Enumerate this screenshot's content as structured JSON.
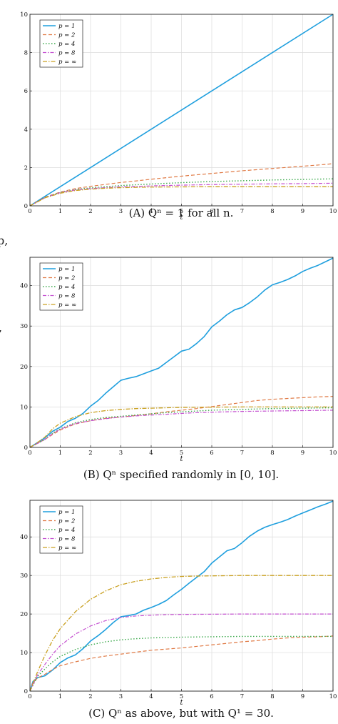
{
  "edge_text": [
    "p,",
    ","
  ],
  "legend_labels": [
    "p = 1",
    "p = 2",
    "p = 4",
    "p = 8",
    "p = ∞"
  ],
  "colors": {
    "p1": "#1f9fde",
    "p2": "#e07a45",
    "p4": "#3aa84a",
    "p8": "#c44fd0",
    "pinf": "#c9a020"
  },
  "chart_data": [
    {
      "type": "line",
      "caption": "(A) Qⁿ = 1 for all n.",
      "xlabel": "t",
      "ylabel": "",
      "xlim": [
        0,
        10
      ],
      "ylim": [
        0,
        10
      ],
      "xticks": [
        0,
        1,
        2,
        3,
        4,
        5,
        6,
        7,
        8,
        9,
        10
      ],
      "yticks": [
        0,
        2,
        4,
        6,
        8,
        10
      ],
      "grid": true,
      "legend": "top-left",
      "series": [
        {
          "name": "p = 1",
          "x": [
            0,
            10
          ],
          "y": [
            0,
            10
          ]
        },
        {
          "name": "p = 2",
          "x": [
            0,
            0.5,
            1,
            1.5,
            2,
            2.5,
            3,
            3.5,
            4,
            4.5,
            5,
            5.5,
            6,
            6.5,
            7,
            7.5,
            8,
            8.5,
            9,
            9.5,
            10
          ],
          "y": [
            0,
            0.45,
            0.72,
            0.9,
            1.02,
            1.12,
            1.22,
            1.3,
            1.39,
            1.47,
            1.55,
            1.62,
            1.69,
            1.76,
            1.83,
            1.89,
            1.95,
            2.01,
            2.07,
            2.13,
            2.2
          ]
        },
        {
          "name": "p = 4",
          "x": [
            0,
            0.5,
            1,
            1.5,
            2,
            2.5,
            3,
            4,
            5,
            6,
            7,
            8,
            9,
            10
          ],
          "y": [
            0,
            0.44,
            0.7,
            0.85,
            0.94,
            1.0,
            1.06,
            1.14,
            1.21,
            1.27,
            1.31,
            1.35,
            1.38,
            1.41
          ]
        },
        {
          "name": "p = 8",
          "x": [
            0,
            0.5,
            1,
            1.5,
            2,
            2.5,
            3,
            4,
            5,
            6,
            7,
            8,
            9,
            10
          ],
          "y": [
            0,
            0.43,
            0.69,
            0.83,
            0.9,
            0.95,
            0.99,
            1.04,
            1.08,
            1.11,
            1.13,
            1.15,
            1.16,
            1.18
          ]
        },
        {
          "name": "p = ∞",
          "x": [
            0,
            0.5,
            1,
            1.5,
            2,
            2.5,
            3,
            4,
            5,
            6,
            7,
            8,
            9,
            10
          ],
          "y": [
            0,
            0.42,
            0.66,
            0.8,
            0.87,
            0.92,
            0.95,
            0.98,
            0.99,
            1.0,
            1.0,
            1.0,
            1.0,
            1.0
          ]
        }
      ]
    },
    {
      "type": "line",
      "caption": "(B) Qⁿ specified randomly in [0, 10].",
      "xlabel": "t",
      "ylabel": "",
      "xlim": [
        0,
        10
      ],
      "ylim": [
        0,
        47
      ],
      "xticks": [
        0,
        1,
        2,
        3,
        4,
        5,
        6,
        7,
        8,
        9,
        10
      ],
      "yticks": [
        0,
        10,
        20,
        30,
        40
      ],
      "grid": true,
      "legend": "top-left",
      "series": [
        {
          "name": "p = 1",
          "x": [
            0,
            0.25,
            0.5,
            0.75,
            1,
            1.25,
            1.5,
            1.75,
            2,
            2.25,
            2.5,
            2.75,
            3,
            3.25,
            3.5,
            3.75,
            4,
            4.25,
            4.5,
            4.75,
            5,
            5.25,
            5.5,
            5.75,
            6,
            6.25,
            6.5,
            6.75,
            7,
            7.25,
            7.5,
            7.75,
            8,
            8.25,
            8.5,
            8.75,
            9,
            9.25,
            9.5,
            9.75,
            10
          ],
          "y": [
            0,
            1.2,
            2.4,
            4.0,
            5.0,
            6.4,
            7.2,
            8.4,
            10.2,
            11.6,
            13.4,
            15.0,
            16.6,
            17.1,
            17.5,
            18.2,
            18.9,
            19.6,
            21.0,
            22.4,
            23.8,
            24.3,
            25.7,
            27.4,
            29.8,
            31.2,
            32.8,
            34.0,
            34.6,
            35.8,
            37.2,
            38.9,
            40.2,
            40.8,
            41.5,
            42.4,
            43.5,
            44.3,
            45.0,
            45.9,
            46.8
          ]
        },
        {
          "name": "p = 2",
          "x": [
            0,
            0.25,
            0.5,
            0.75,
            1,
            1.5,
            2,
            2.5,
            3,
            3.5,
            4,
            4.5,
            5,
            5.5,
            6,
            6.5,
            7,
            7.5,
            8,
            8.5,
            9,
            9.5,
            10
          ],
          "y": [
            0,
            1.0,
            2.0,
            3.2,
            4.3,
            5.8,
            6.6,
            7.2,
            7.5,
            7.9,
            8.3,
            8.8,
            9.2,
            9.6,
            10.1,
            10.6,
            11.1,
            11.6,
            11.9,
            12.1,
            12.3,
            12.5,
            12.6
          ]
        },
        {
          "name": "p = 4",
          "x": [
            0,
            0.25,
            0.5,
            0.75,
            1,
            1.5,
            2,
            2.5,
            3,
            3.5,
            4,
            4.5,
            5,
            5.5,
            6,
            7,
            8,
            9,
            10
          ],
          "y": [
            0,
            1.0,
            2.0,
            3.5,
            4.6,
            6.1,
            6.9,
            7.4,
            7.7,
            8.0,
            8.3,
            8.6,
            8.8,
            9.0,
            9.2,
            9.4,
            9.6,
            9.7,
            9.8
          ]
        },
        {
          "name": "p = 8",
          "x": [
            0,
            0.25,
            0.5,
            0.75,
            1,
            1.5,
            2,
            2.5,
            3,
            3.5,
            4,
            4.5,
            5,
            5.5,
            6,
            7,
            8,
            9,
            10
          ],
          "y": [
            0,
            1.0,
            2.0,
            3.4,
            4.5,
            5.9,
            6.6,
            7.1,
            7.5,
            7.8,
            8.0,
            8.2,
            8.4,
            8.6,
            8.7,
            8.9,
            9.0,
            9.1,
            9.2
          ]
        },
        {
          "name": "p = ∞",
          "x": [
            0,
            0.25,
            0.5,
            0.75,
            1,
            1.5,
            2,
            2.5,
            3,
            3.5,
            4,
            4.5,
            5,
            6,
            7,
            8,
            9,
            10
          ],
          "y": [
            0,
            1.2,
            2.6,
            4.6,
            6.0,
            7.6,
            8.6,
            9.1,
            9.4,
            9.6,
            9.7,
            9.8,
            9.9,
            9.95,
            10.0,
            10.0,
            10.0,
            10.0
          ]
        }
      ]
    },
    {
      "type": "line",
      "caption": "(C) Qⁿ as above, but with Q¹ = 30.",
      "xlabel": "t",
      "ylabel": "",
      "xlim": [
        0,
        10
      ],
      "ylim": [
        0,
        49.5
      ],
      "xticks": [
        0,
        1,
        2,
        3,
        4,
        5,
        6,
        7,
        8,
        9,
        10
      ],
      "yticks": [
        0,
        10,
        20,
        30,
        40
      ],
      "grid": true,
      "legend": "top-left",
      "series": [
        {
          "name": "p = 1",
          "x": [
            0,
            0.1,
            0.25,
            0.5,
            0.75,
            1,
            1.25,
            1.5,
            1.75,
            2,
            2.25,
            2.5,
            2.75,
            3,
            3.25,
            3.5,
            3.75,
            4,
            4.25,
            4.5,
            4.75,
            5,
            5.25,
            5.5,
            5.75,
            6,
            6.25,
            6.5,
            6.75,
            7,
            7.25,
            7.5,
            7.75,
            8,
            8.25,
            8.5,
            8.75,
            9,
            9.25,
            9.5,
            9.75,
            10
          ],
          "y": [
            0,
            2.5,
            3.5,
            4.0,
            5.5,
            7.4,
            8.6,
            9.4,
            11.0,
            13.0,
            14.4,
            16.0,
            17.8,
            19.3,
            19.6,
            20.0,
            21.0,
            21.7,
            22.5,
            23.5,
            25.0,
            26.4,
            28.0,
            29.5,
            31.0,
            33.2,
            34.8,
            36.4,
            37.0,
            38.5,
            40.2,
            41.5,
            42.5,
            43.2,
            43.8,
            44.5,
            45.4,
            46.2,
            47.0,
            47.8,
            48.5,
            49.3
          ]
        },
        {
          "name": "p = 2",
          "x": [
            0,
            0.1,
            0.25,
            0.5,
            0.75,
            1,
            1.5,
            2,
            2.5,
            3,
            3.5,
            4,
            4.5,
            5,
            5.5,
            6,
            6.5,
            7,
            7.5,
            8,
            8.5,
            9,
            9.5,
            10
          ],
          "y": [
            0,
            2.2,
            3.4,
            4.4,
            5.6,
            6.6,
            7.6,
            8.5,
            9.1,
            9.6,
            10.1,
            10.6,
            10.9,
            11.2,
            11.6,
            12.0,
            12.4,
            12.8,
            13.1,
            13.5,
            13.8,
            14.0,
            14.1,
            14.3
          ]
        },
        {
          "name": "p = 4",
          "x": [
            0,
            0.25,
            0.5,
            0.75,
            1,
            1.5,
            2,
            2.5,
            3,
            3.5,
            4,
            4.5,
            5,
            6,
            7,
            8,
            9,
            10
          ],
          "y": [
            0,
            3.8,
            5.8,
            7.6,
            9.0,
            10.8,
            12.0,
            12.8,
            13.3,
            13.6,
            13.8,
            13.9,
            14.0,
            14.1,
            14.2,
            14.2,
            14.2,
            14.2
          ]
        },
        {
          "name": "p = 8",
          "x": [
            0,
            0.25,
            0.5,
            0.75,
            1,
            1.5,
            2,
            2.5,
            3,
            3.5,
            4,
            4.5,
            5,
            6,
            7,
            8,
            9,
            10
          ],
          "y": [
            0,
            4.2,
            7.0,
            9.6,
            11.8,
            14.8,
            16.9,
            18.3,
            19.1,
            19.5,
            19.7,
            19.85,
            19.9,
            19.95,
            20.0,
            20.0,
            20.0,
            20.0
          ]
        },
        {
          "name": "p = ∞",
          "x": [
            0,
            0.25,
            0.5,
            0.75,
            1,
            1.5,
            2,
            2.5,
            3,
            3.5,
            4,
            4.5,
            5,
            5.5,
            6,
            7,
            8,
            9,
            10
          ],
          "y": [
            0,
            5.0,
            9.4,
            13.2,
            16.2,
            20.6,
            23.8,
            26.0,
            27.6,
            28.5,
            29.1,
            29.5,
            29.75,
            29.85,
            29.9,
            30.0,
            30.0,
            30.0,
            30.0
          ]
        }
      ]
    }
  ]
}
